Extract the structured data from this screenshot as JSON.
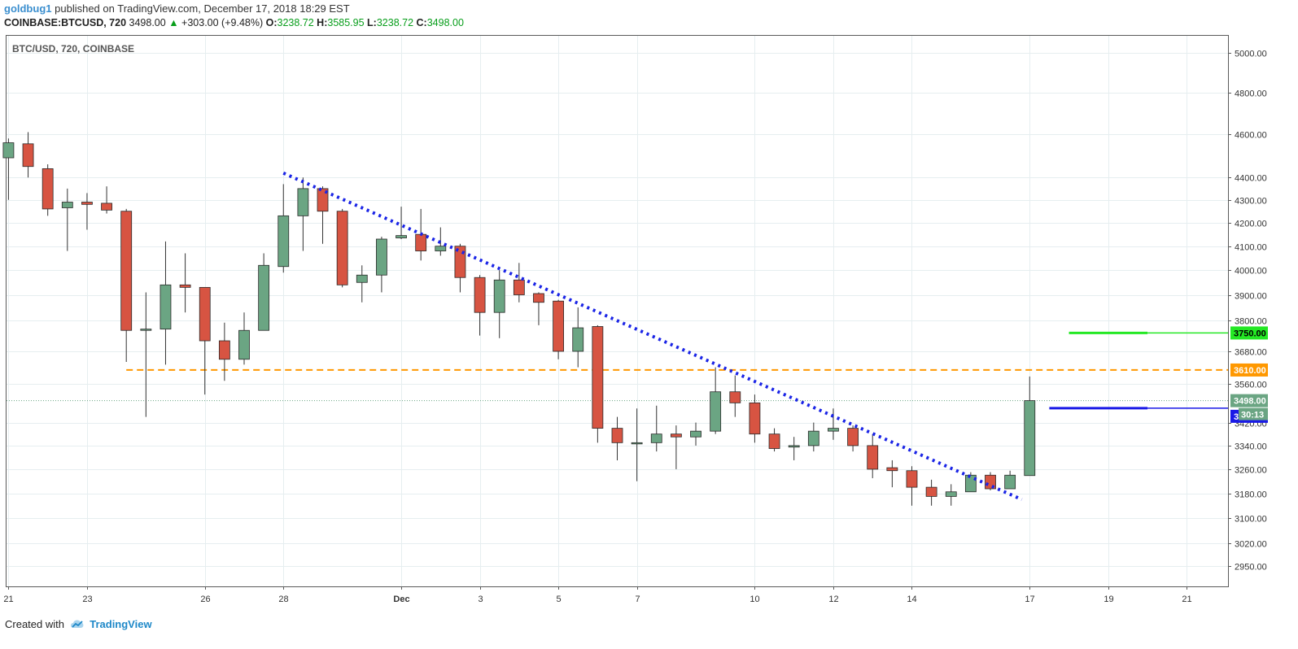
{
  "header": {
    "user": "goldbug1",
    "published_text": "published on TradingView.com, December 17, 2018 18:29 EST",
    "symbol": "COINBASE:BTCUSD, 720",
    "last": "3498.00",
    "change_arrow": "▲",
    "change": "+303.00 (+9.48%)",
    "open_label": "O:",
    "open": "3238.72",
    "high_label": "H:",
    "high": "3585.95",
    "low_label": "L:",
    "low": "3238.72",
    "close_label": "C:",
    "close": "3498.00"
  },
  "footer": {
    "created_with": "Created with",
    "brand": "TradingView",
    "logo_icon": "tradingview-cloud-icon"
  },
  "colors": {
    "up": "#6ba583",
    "down": "#d75442",
    "wick": "#333333",
    "trendline": "#1a24e6",
    "resistance": "#ff9800",
    "target": "#24e824",
    "current_line": "#1a1ae6",
    "grid": "#e6eef0"
  },
  "chart_data": {
    "type": "candlestick",
    "title": "BTC/USD, 720, COINBASE",
    "scale": "log",
    "ylim": [
      2890,
      5090
    ],
    "y_ticks": [
      2950,
      3020,
      3100,
      3180,
      3260,
      3340,
      3420,
      3560,
      3680,
      3800,
      3900,
      4000,
      4100,
      4200,
      4300,
      4400,
      4600,
      4800,
      5000
    ],
    "x_ticks": [
      {
        "i": 0,
        "label": "21"
      },
      {
        "i": 4,
        "label": "23"
      },
      {
        "i": 10,
        "label": "26"
      },
      {
        "i": 14,
        "label": "28"
      },
      {
        "i": 20,
        "label": "Dec"
      },
      {
        "i": 24,
        "label": "3"
      },
      {
        "i": 28,
        "label": "5"
      },
      {
        "i": 32,
        "label": "7"
      },
      {
        "i": 38,
        "label": "10"
      },
      {
        "i": 42,
        "label": "12"
      },
      {
        "i": 46,
        "label": "14"
      },
      {
        "i": 52,
        "label": "17"
      },
      {
        "i": 56,
        "label": "19"
      },
      {
        "i": 60,
        "label": "21"
      }
    ],
    "x_range": [
      -0.1,
      62.1
    ],
    "candles": [
      {
        "o": 4490,
        "h": 4580,
        "l": 4300,
        "c": 4560
      },
      {
        "o": 4555,
        "h": 4610,
        "l": 4400,
        "c": 4450
      },
      {
        "o": 4440,
        "h": 4460,
        "l": 4230,
        "c": 4260
      },
      {
        "o": 4265,
        "h": 4350,
        "l": 4080,
        "c": 4290
      },
      {
        "o": 4290,
        "h": 4330,
        "l": 4170,
        "c": 4280
      },
      {
        "o": 4285,
        "h": 4360,
        "l": 4240,
        "c": 4255
      },
      {
        "o": 4250,
        "h": 4260,
        "l": 3640,
        "c": 3760
      },
      {
        "o": 3760,
        "h": 3910,
        "l": 3440,
        "c": 3765
      },
      {
        "o": 3765,
        "h": 4120,
        "l": 3630,
        "c": 3940
      },
      {
        "o": 3940,
        "h": 4070,
        "l": 3830,
        "c": 3930
      },
      {
        "o": 3930,
        "h": 3930,
        "l": 3520,
        "c": 3720
      },
      {
        "o": 3720,
        "h": 3790,
        "l": 3570,
        "c": 3650
      },
      {
        "o": 3650,
        "h": 3830,
        "l": 3630,
        "c": 3760
      },
      {
        "o": 3760,
        "h": 4070,
        "l": 3760,
        "c": 4020
      },
      {
        "o": 4015,
        "h": 4370,
        "l": 3990,
        "c": 4230
      },
      {
        "o": 4230,
        "h": 4400,
        "l": 4080,
        "c": 4350
      },
      {
        "o": 4350,
        "h": 4360,
        "l": 4110,
        "c": 4250
      },
      {
        "o": 4250,
        "h": 4260,
        "l": 3930,
        "c": 3940
      },
      {
        "o": 3950,
        "h": 4020,
        "l": 3870,
        "c": 3980
      },
      {
        "o": 3980,
        "h": 4140,
        "l": 3910,
        "c": 4130
      },
      {
        "o": 4135,
        "h": 4270,
        "l": 4130,
        "c": 4145
      },
      {
        "o": 4150,
        "h": 4260,
        "l": 4040,
        "c": 4080
      },
      {
        "o": 4080,
        "h": 4180,
        "l": 4060,
        "c": 4100
      },
      {
        "o": 4100,
        "h": 4110,
        "l": 3910,
        "c": 3970
      },
      {
        "o": 3970,
        "h": 3980,
        "l": 3740,
        "c": 3830
      },
      {
        "o": 3830,
        "h": 4000,
        "l": 3730,
        "c": 3960
      },
      {
        "o": 3960,
        "h": 4030,
        "l": 3870,
        "c": 3900
      },
      {
        "o": 3905,
        "h": 3910,
        "l": 3780,
        "c": 3870
      },
      {
        "o": 3875,
        "h": 3880,
        "l": 3650,
        "c": 3680
      },
      {
        "o": 3680,
        "h": 3850,
        "l": 3620,
        "c": 3770
      },
      {
        "o": 3775,
        "h": 3780,
        "l": 3350,
        "c": 3400
      },
      {
        "o": 3400,
        "h": 3440,
        "l": 3290,
        "c": 3350
      },
      {
        "o": 3350,
        "h": 3470,
        "l": 3220,
        "c": 3350
      },
      {
        "o": 3350,
        "h": 3480,
        "l": 3320,
        "c": 3380
      },
      {
        "o": 3380,
        "h": 3410,
        "l": 3260,
        "c": 3370
      },
      {
        "o": 3370,
        "h": 3420,
        "l": 3340,
        "c": 3390
      },
      {
        "o": 3390,
        "h": 3620,
        "l": 3380,
        "c": 3530
      },
      {
        "o": 3530,
        "h": 3590,
        "l": 3440,
        "c": 3490
      },
      {
        "o": 3490,
        "h": 3520,
        "l": 3350,
        "c": 3380
      },
      {
        "o": 3380,
        "h": 3400,
        "l": 3320,
        "c": 3330
      },
      {
        "o": 3335,
        "h": 3370,
        "l": 3290,
        "c": 3340
      },
      {
        "o": 3340,
        "h": 3420,
        "l": 3320,
        "c": 3390
      },
      {
        "o": 3390,
        "h": 3470,
        "l": 3360,
        "c": 3400
      },
      {
        "o": 3400,
        "h": 3410,
        "l": 3320,
        "c": 3340
      },
      {
        "o": 3340,
        "h": 3380,
        "l": 3230,
        "c": 3260
      },
      {
        "o": 3265,
        "h": 3290,
        "l": 3200,
        "c": 3255
      },
      {
        "o": 3255,
        "h": 3270,
        "l": 3140,
        "c": 3200
      },
      {
        "o": 3200,
        "h": 3225,
        "l": 3140,
        "c": 3170
      },
      {
        "o": 3170,
        "h": 3210,
        "l": 3140,
        "c": 3185
      },
      {
        "o": 3185,
        "h": 3250,
        "l": 3185,
        "c": 3240
      },
      {
        "o": 3240,
        "h": 3250,
        "l": 3190,
        "c": 3195
      },
      {
        "o": 3195,
        "h": 3255,
        "l": 3195,
        "c": 3240
      },
      {
        "o": 3238.72,
        "h": 3585.95,
        "l": 3238.72,
        "c": 3498.0
      }
    ],
    "trendline": {
      "start": {
        "i": 14,
        "price": 4420
      },
      "end": {
        "i": 51.6,
        "price": 3160
      }
    },
    "resistance": {
      "price": 3610,
      "label": "3610.00",
      "from_i": 6
    },
    "target": {
      "price": 3750,
      "label": "3750.00",
      "from_i": 54
    },
    "current_target": {
      "price": 3471,
      "label": "3471.00",
      "from_i": 53
    },
    "last_price": {
      "price": 3498,
      "label": "3498.00"
    },
    "countdown": "30:13"
  }
}
